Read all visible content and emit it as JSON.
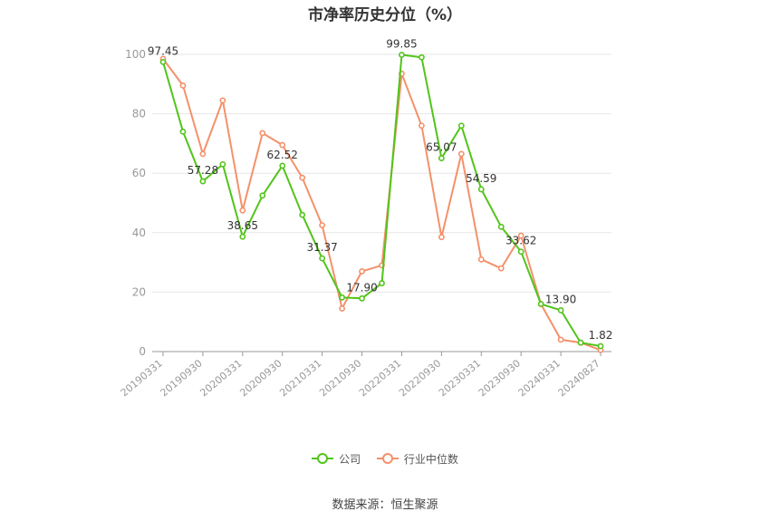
{
  "chart_data": {
    "type": "line",
    "title": "市净率历史分位（%）",
    "categories": [
      "20190331",
      "20190630",
      "20190930",
      "20191231",
      "20200331",
      "20200630",
      "20200930",
      "20201231",
      "20210331",
      "20210630",
      "20210930",
      "20211231",
      "20220331",
      "20220630",
      "20220930",
      "20221231",
      "20230331",
      "20230630",
      "20230930",
      "20231231",
      "20240331",
      "20240630",
      "20240827"
    ],
    "x_tick_labels": [
      "20190331",
      "20190930",
      "20200331",
      "20200930",
      "20210331",
      "20210930",
      "20220331",
      "20220930",
      "20230331",
      "20230930",
      "20240331",
      "20240827"
    ],
    "ylim": [
      0,
      100
    ],
    "yticks": [
      0,
      20,
      40,
      60,
      80,
      100
    ],
    "grid": true,
    "legend_position": "bottom",
    "series": [
      {
        "name": "公司",
        "color": "#52c41a",
        "values": [
          97.45,
          74,
          57.28,
          63,
          38.65,
          52.5,
          62.52,
          46,
          31.37,
          18.2,
          17.9,
          23,
          99.85,
          99,
          65.07,
          76,
          54.59,
          42,
          33.62,
          16,
          13.9,
          3,
          1.82
        ],
        "labeled_indices": [
          0,
          2,
          4,
          6,
          8,
          10,
          12,
          14,
          16,
          18,
          20,
          22
        ]
      },
      {
        "name": "行业中位数",
        "color": "#f4916a",
        "values": [
          98.5,
          89.5,
          66.5,
          84.5,
          47.5,
          73.5,
          69.5,
          58.5,
          42.5,
          14.5,
          27,
          29,
          93.5,
          76,
          38.5,
          66.5,
          31,
          28,
          39,
          16,
          4,
          3,
          0.5
        ],
        "labeled_indices": []
      }
    ]
  },
  "legend": {
    "company": "公司",
    "industry": "行业中位数"
  },
  "source": "数据来源：恒生聚源"
}
